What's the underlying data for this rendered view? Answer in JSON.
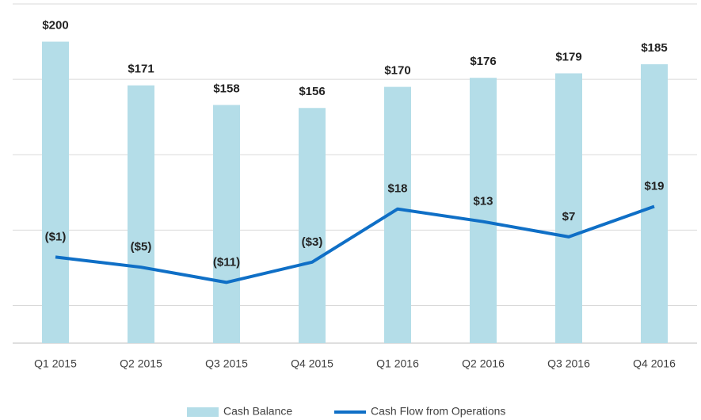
{
  "chart_data": {
    "type": "bar-line",
    "categories": [
      "Q1 2015",
      "Q2 2015",
      "Q3 2015",
      "Q4 2015",
      "Q1 2016",
      "Q2 2016",
      "Q3 2016",
      "Q4 2016"
    ],
    "series": [
      {
        "name": "Cash Balance",
        "color": "#b4dde8",
        "type": "bar",
        "values": [
          200,
          171,
          158,
          156,
          170,
          176,
          179,
          185
        ],
        "value_labels": [
          "$200",
          "$171",
          "$158",
          "$156",
          "$170",
          "$176",
          "$179",
          "$185"
        ]
      },
      {
        "name": "Cash Flow from Operations",
        "color": "#0f6fc6",
        "type": "line",
        "axis": "y2",
        "values": [
          -1,
          -5,
          -11,
          -3,
          18,
          13,
          7,
          19
        ],
        "value_labels": [
          "($1)",
          "($5)",
          "($11)",
          "($3)",
          "$18",
          "$13",
          "$7",
          "$19"
        ]
      }
    ],
    "ylim": [
      0,
      225
    ],
    "yticks": [
      25,
      75,
      125,
      175,
      225
    ],
    "y2lim": [
      -35,
      99
    ],
    "grid": true,
    "legend": "bottom"
  }
}
